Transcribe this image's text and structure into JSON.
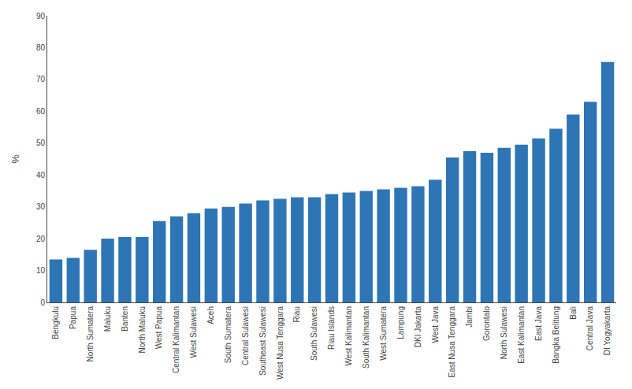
{
  "chart_data": {
    "type": "bar",
    "categories": [
      "Bengkulu",
      "Papua",
      "North Sumatera",
      "Maluku",
      "Banten",
      "North Maluku",
      "West Papua",
      "Central Kalimantan",
      "West Sulawesi",
      "Aceh",
      "South Sumatera",
      "Central Sulawesi",
      "Southeast Sulawesi",
      "West Nusa Tenggara",
      "Riau",
      "South Sulawesi",
      "Riau Islands",
      "West Kalimantan",
      "South Kalimantan",
      "West Sumatera",
      "Lampung",
      "DKI Jakarta",
      "West Java",
      "East Nusa Tenggara",
      "Jambi",
      "Gorontalo",
      "North Sulawesi",
      "East Kalimantan",
      "East Java",
      "Bangka Belitung",
      "Bali",
      "Central Java",
      "DI Yogyakarta"
    ],
    "values": [
      13.5,
      14.0,
      16.5,
      20.0,
      20.5,
      20.5,
      25.5,
      27.0,
      28.0,
      29.5,
      30.0,
      31.0,
      32.0,
      32.5,
      33.0,
      33.0,
      34.0,
      34.5,
      35.0,
      35.5,
      36.0,
      36.5,
      38.5,
      45.5,
      47.5,
      47.0,
      48.5,
      49.5,
      51.5,
      54.5,
      59.0,
      63.0,
      75.5
    ],
    "color": "#2E75B6",
    "ylabel": "%",
    "ylim": [
      0,
      90
    ],
    "yticks": [
      0,
      10,
      20,
      30,
      40,
      50,
      60,
      70,
      80,
      90
    ],
    "grid": false
  }
}
